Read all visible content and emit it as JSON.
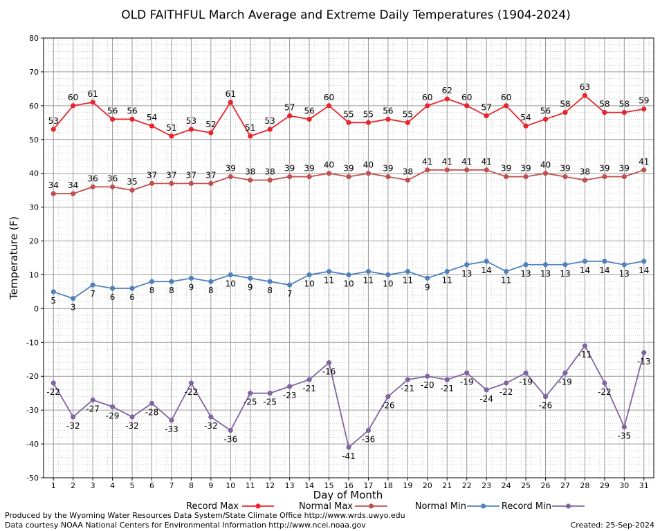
{
  "chart_data": {
    "type": "line",
    "title": "OLD FAITHFUL March Average and Extreme Daily Temperatures (1904-2024)",
    "xlabel": "Day of Month",
    "ylabel": "Temperature (F)",
    "ylim": [
      -50,
      80
    ],
    "yticks": [
      -50,
      -40,
      -30,
      -20,
      -10,
      0,
      10,
      20,
      30,
      40,
      50,
      60,
      70,
      80
    ],
    "x": [
      1,
      2,
      3,
      4,
      5,
      6,
      7,
      8,
      9,
      10,
      11,
      12,
      13,
      14,
      15,
      16,
      17,
      18,
      19,
      20,
      21,
      22,
      23,
      24,
      25,
      26,
      27,
      28,
      29,
      30,
      31
    ],
    "grid": true,
    "legend_position": "bottom",
    "series": [
      {
        "name": "Record Max",
        "color": "#e8232b",
        "label_position": "above",
        "values": [
          53,
          60,
          61,
          56,
          56,
          54,
          51,
          53,
          52,
          61,
          51,
          53,
          57,
          56,
          60,
          55,
          55,
          56,
          55,
          60,
          62,
          60,
          57,
          60,
          54,
          56,
          58,
          63,
          58,
          58,
          59
        ]
      },
      {
        "name": "Normal Max",
        "color": "#c0504d",
        "label_position": "above",
        "values": [
          34,
          34,
          36,
          36,
          35,
          37,
          37,
          37,
          37,
          39,
          38,
          38,
          39,
          39,
          40,
          39,
          40,
          39,
          38,
          41,
          41,
          41,
          41,
          39,
          39,
          40,
          39,
          38,
          39,
          39,
          41
        ]
      },
      {
        "name": "Normal Min",
        "color": "#4f81bd",
        "label_position": "below",
        "values": [
          5,
          3,
          7,
          6,
          6,
          8,
          8,
          9,
          8,
          10,
          9,
          8,
          7,
          10,
          11,
          10,
          11,
          10,
          11,
          9,
          11,
          13,
          14,
          11,
          13,
          13,
          13,
          14,
          14,
          13,
          14
        ]
      },
      {
        "name": "Record Min",
        "color": "#8064a2",
        "label_position": "below",
        "values": [
          -22,
          -32,
          -27,
          -29,
          -32,
          -28,
          -33,
          -22,
          -32,
          -36,
          -25,
          -25,
          -23,
          -21,
          -16,
          -41,
          -36,
          -26,
          -21,
          -20,
          -21,
          -19,
          -24,
          -22,
          -19,
          -26,
          -19,
          -11,
          -22,
          -35,
          -13
        ]
      }
    ]
  },
  "footer": {
    "line1": "Produced by the Wyoming Water Resources Data System/State Climate Office http://www.wrds.uwyo.edu",
    "line2": "Data courtesy NOAA National Centers for Environmental Information http://www.ncei.noaa.gov",
    "created": "Created:  25-Sep-2024"
  }
}
